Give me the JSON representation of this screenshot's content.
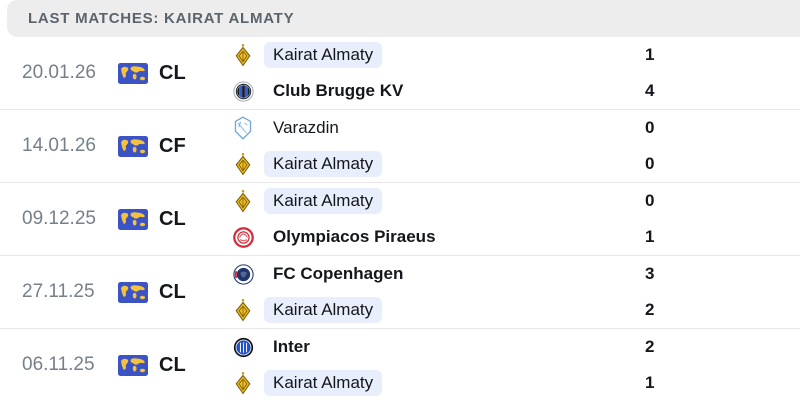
{
  "header": {
    "title": "LAST MATCHES: KAIRAT ALMATY"
  },
  "colors": {
    "header_bg": "#ededed",
    "highlight_bg": "#e8eefb",
    "competition_badge_blue": "#3c53c6",
    "competition_map_yellow": "#f5c33b",
    "date_text": "#75808a",
    "separator": "#e8e8ea"
  },
  "matches": [
    {
      "date": "20.01.26",
      "competition": "CL",
      "competition_icon": "world-map-icon",
      "teams": [
        {
          "name": "Kairat Almaty",
          "logo": "kairat-almaty-logo",
          "score": "1",
          "highlighted": true,
          "bold": false
        },
        {
          "name": "Club Brugge KV",
          "logo": "club-brugge-logo",
          "score": "4",
          "highlighted": false,
          "bold": true
        }
      ]
    },
    {
      "date": "14.01.26",
      "competition": "CF",
      "competition_icon": "world-map-icon",
      "teams": [
        {
          "name": "Varazdin",
          "logo": "varazdin-logo",
          "score": "0",
          "highlighted": false,
          "bold": false
        },
        {
          "name": "Kairat Almaty",
          "logo": "kairat-almaty-logo",
          "score": "0",
          "highlighted": true,
          "bold": false
        }
      ]
    },
    {
      "date": "09.12.25",
      "competition": "CL",
      "competition_icon": "world-map-icon",
      "teams": [
        {
          "name": "Kairat Almaty",
          "logo": "kairat-almaty-logo",
          "score": "0",
          "highlighted": true,
          "bold": false
        },
        {
          "name": "Olympiacos Piraeus",
          "logo": "olympiacos-logo",
          "score": "1",
          "highlighted": false,
          "bold": true
        }
      ]
    },
    {
      "date": "27.11.25",
      "competition": "CL",
      "competition_icon": "world-map-icon",
      "teams": [
        {
          "name": "FC Copenhagen",
          "logo": "fc-copenhagen-logo",
          "score": "3",
          "highlighted": false,
          "bold": true
        },
        {
          "name": "Kairat Almaty",
          "logo": "kairat-almaty-logo",
          "score": "2",
          "highlighted": true,
          "bold": false
        }
      ]
    },
    {
      "date": "06.11.25",
      "competition": "CL",
      "competition_icon": "world-map-icon",
      "teams": [
        {
          "name": "Inter",
          "logo": "inter-logo",
          "score": "2",
          "highlighted": false,
          "bold": true
        },
        {
          "name": "Kairat Almaty",
          "logo": "kairat-almaty-logo",
          "score": "1",
          "highlighted": true,
          "bold": false
        }
      ]
    }
  ]
}
